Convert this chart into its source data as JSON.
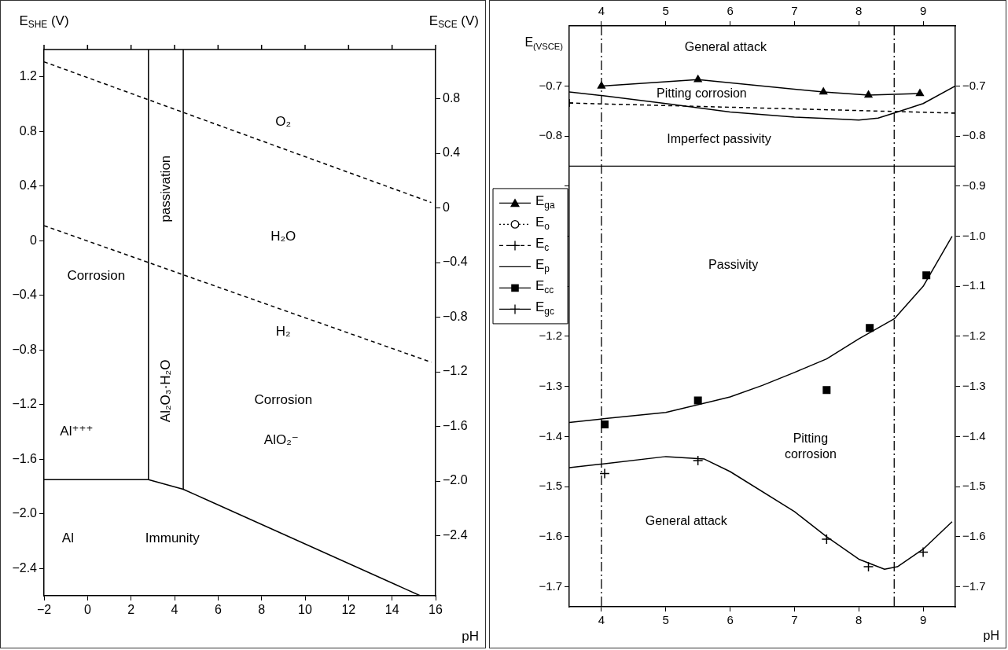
{
  "chart_data": [
    {
      "type": "line",
      "xlabel": "pH",
      "ylabel": "E$_{SHE}$ (V)",
      "y2label": "E$_{SCE}$ (V)",
      "marker": "none",
      "xlim": [
        -2,
        16
      ],
      "xticks": [
        -2,
        0,
        2,
        4,
        6,
        8,
        10,
        12,
        14,
        16
      ],
      "ylim": [
        -2.6,
        1.4
      ],
      "yticks": [
        1.2,
        0.8,
        0.4,
        0,
        -0.4,
        -0.8,
        -1.2,
        -1.6,
        {
          "value": -2,
          "label": "−2.0"
        },
        -2.4
      ],
      "y2lim": [
        -2.84,
        1.16
      ],
      "y2ticks": [
        0.8,
        0.4,
        0,
        -0.4,
        -0.8,
        -1.2,
        -1.6,
        {
          "value": -2,
          "label": "−2.0"
        },
        -2.4
      ],
      "series": [
        {
          "type": "line",
          "color": "#000000",
          "line_style": "dashed",
          "x": [
            -2,
            15.8
          ],
          "values": [
            1.31,
            0.28
          ]
        },
        {
          "type": "line",
          "color": "#000000",
          "line_style": "dashed",
          "x": [
            -2,
            15.8
          ],
          "values": [
            0.11,
            -0.89
          ]
        },
        {
          "type": "line",
          "color": "#000000",
          "x": [
            2.8,
            2.8
          ],
          "values": [
            1.4,
            -1.75
          ]
        },
        {
          "type": "line",
          "color": "#000000",
          "x": [
            4.4,
            4.4
          ],
          "values": [
            1.4,
            -1.82
          ]
        },
        {
          "type": "line",
          "color": "#000000",
          "x": [
            -2,
            2.8,
            4.4,
            15.3
          ],
          "values": [
            -1.75,
            -1.75,
            -1.82,
            -2.6
          ]
        }
      ],
      "annotations": [
        "Corrosion",
        "passivation",
        "O₂",
        "H₂O",
        "H₂",
        "Al₂O₃·H₂O",
        "Corrosion",
        "AlO₂⁻",
        "Al⁺⁺⁺",
        "Al",
        "Immunity"
      ]
    },
    {
      "type": "line",
      "xlabel": "pH",
      "ylabel": "E$_{(VSCE)}$",
      "legend": "left",
      "marker": "none",
      "xlim": [
        3.5,
        9.5
      ],
      "xticks": [
        4,
        5,
        6,
        7,
        8,
        9
      ],
      "x2lim": [
        3.5,
        9.5
      ],
      "x2ticks": [
        4,
        5,
        6,
        7,
        8,
        9
      ],
      "ylim": [
        -1.74,
        -0.58
      ],
      "yticks": [
        -0.7,
        -0.8,
        {
          "value": -0.9,
          "label": null
        },
        {
          "value": -1,
          "label": null
        },
        {
          "value": -1.1,
          "label": null
        },
        -1.2,
        -1.3,
        -1.4,
        -1.5,
        -1.6,
        -1.7
      ],
      "y2lim": [
        -1.74,
        -0.58
      ],
      "y2ticks": [
        -0.7,
        -0.8,
        -0.9,
        {
          "value": -1,
          "label": "−1.0"
        },
        -1.1,
        -1.2,
        -1.3,
        -1.4,
        -1.5,
        -1.6,
        -1.7
      ],
      "series": [
        {
          "name": "E$_{ga}$",
          "type": "line",
          "marker": "triangle",
          "color": "#000000",
          "x": [
            4,
            5.5,
            7.45,
            8.15,
            8.95
          ],
          "values": [
            -0.7,
            -0.687,
            -0.712,
            -0.718,
            -0.715
          ]
        },
        {
          "name": "E$_{o}$",
          "type": "line",
          "line_style": "dotted",
          "marker": "circle",
          "color": "#000000"
        },
        {
          "name": "E$_{c}$",
          "type": "line",
          "line_style": "dashed",
          "marker": "cross",
          "color": "#000000",
          "x": [
            3.5,
            9.5
          ],
          "values": [
            -0.734,
            -0.754
          ]
        },
        {
          "name": "E$_{p}$",
          "type": "line",
          "color": "#000000",
          "x": [
            3.5,
            4,
            5,
            6,
            7,
            7.5,
            8,
            8.3,
            8.6,
            9,
            9.5
          ],
          "values": [
            -0.712,
            -0.719,
            -0.735,
            -0.752,
            -0.762,
            -0.765,
            -0.768,
            -0.764,
            -0.752,
            -0.735,
            -0.7
          ]
        },
        {
          "name": "E$_{cc}$",
          "type": "scatter",
          "marker": "square",
          "color": "#000000",
          "x": [
            4.05,
            5.5,
            7.5,
            8.17,
            9.05
          ],
          "values": [
            -1.376,
            -1.328,
            -1.307,
            -1.183,
            -1.078
          ]
        },
        {
          "name": "E$_{gc}$",
          "type": "scatter",
          "marker": "cross",
          "color": "#000000",
          "x": [
            4.05,
            5.5,
            7.5,
            8.15,
            9
          ],
          "values": [
            -1.474,
            -1.448,
            -1.605,
            -1.66,
            -1.631
          ]
        },
        {
          "type": "line",
          "color": "#000000",
          "x": [
            3.5,
            4,
            5,
            6,
            6.5,
            7,
            7.5,
            8,
            8.55,
            9,
            9.45
          ],
          "values": [
            -1.372,
            -1.365,
            -1.352,
            -1.321,
            -1.298,
            -1.272,
            -1.245,
            -1.205,
            -1.165,
            -1.1,
            -1
          ]
        },
        {
          "type": "line",
          "color": "#000000",
          "x": [
            3.5,
            4,
            5,
            5.6,
            6,
            7,
            7.5,
            8,
            8.4,
            8.6,
            9,
            9.45
          ],
          "values": [
            -1.462,
            -1.455,
            -1.44,
            -1.445,
            -1.47,
            -1.55,
            -1.6,
            -1.645,
            -1.665,
            -1.66,
            -1.625,
            -1.57
          ]
        }
      ],
      "ref_lines": [
        {
          "axis": "x",
          "value": 4,
          "line_style": "dashed"
        },
        {
          "axis": "x",
          "value": 8.55,
          "line_style": "dashed"
        },
        {
          "axis": "y",
          "value": -0.86
        }
      ],
      "annotations": [
        "General attack",
        "Pitting corrosion",
        "Imperfect passivity",
        "Passivity",
        "Pitting\ncorrosion",
        "General attack"
      ]
    }
  ]
}
